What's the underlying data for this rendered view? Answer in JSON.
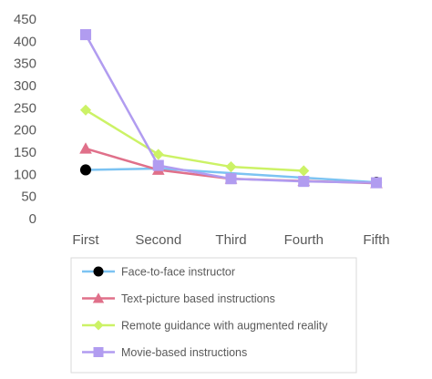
{
  "chart_data": {
    "type": "line",
    "categories": [
      "First",
      "Second",
      "Third",
      "Fourth",
      "Fifth"
    ],
    "ylim": [
      0,
      450
    ],
    "yticks": [
      0,
      50,
      100,
      150,
      200,
      250,
      300,
      350,
      400,
      450
    ],
    "grid": false,
    "legend_position": "bottom",
    "series": [
      {
        "name": "Face-to-face instructor",
        "color": "#7cc3f2",
        "marker": "circle",
        "marker_color": "#000000",
        "values": [
          110,
          113,
          null,
          null,
          82
        ],
        "marker_indices": [
          0,
          4
        ]
      },
      {
        "name": "Text-picture based instructions",
        "color": "#e0708a",
        "marker": "triangle",
        "marker_color": "#e0708a",
        "values": [
          158,
          110,
          90,
          85,
          80
        ],
        "marker_indices": [
          0,
          1,
          2,
          3,
          4
        ]
      },
      {
        "name": "Remote guidance with augmented reality",
        "color": "#ccf266",
        "marker": "diamond",
        "marker_color": "#ccf266",
        "values": [
          245,
          145,
          117,
          108,
          null
        ],
        "marker_indices": [
          0,
          1,
          2,
          3
        ]
      },
      {
        "name": "Movie-based instructions",
        "color": "#b19cf0",
        "marker": "square",
        "marker_color": "#b19cf0",
        "values": [
          415,
          120,
          90,
          84,
          81
        ],
        "marker_indices": [
          0,
          1,
          2,
          3,
          4
        ]
      }
    ]
  }
}
